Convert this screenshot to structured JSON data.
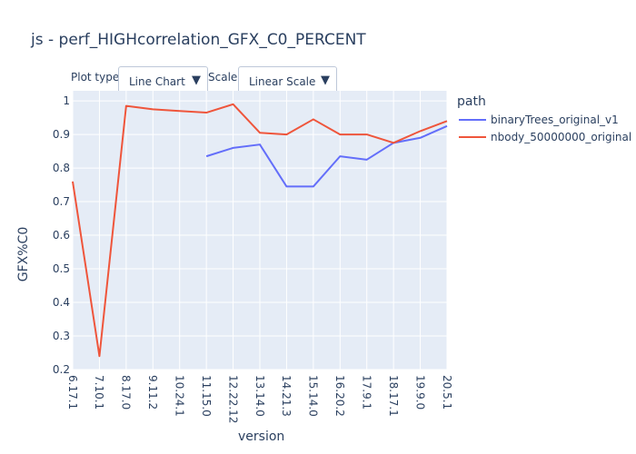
{
  "title": "js - perf_HIGHcorrelation_GFX_C0_PERCENT",
  "controls": {
    "plot_type_label": "Plot type:",
    "plot_type_value": "Line Chart",
    "scale_label": "Scale:",
    "scale_value": "Linear Scale",
    "dropdown_arrow": "▼"
  },
  "legend": {
    "title": "path"
  },
  "colors": {
    "background": "#ffffff",
    "plot_bg": "#e5ecf6",
    "grid": "#ffffff",
    "series_blue": "#636efa",
    "series_red": "#ef553b",
    "text": "#2a3f5f"
  },
  "chart_data": {
    "type": "line",
    "title": "js - perf_HIGHcorrelation_GFX_C0_PERCENT",
    "xlabel": "version",
    "ylabel": "GFX%C0",
    "x_categories": [
      "6.17.1",
      "7.10.1",
      "8.17.0",
      "9.11.2",
      "10.24.1",
      "11.15.0",
      "12.22.12",
      "13.14.0",
      "14.21.3",
      "15.14.0",
      "16.20.2",
      "17.9.1",
      "18.17.1",
      "19.9.0",
      "20.5.1"
    ],
    "ylim": [
      0.2,
      1.03
    ],
    "yticks": [
      0.2,
      0.3,
      0.4,
      0.5,
      0.6,
      0.7,
      0.8,
      0.9,
      1
    ],
    "ytick_labels": [
      "0.2",
      "0.3",
      "0.4",
      "0.5",
      "0.6",
      "0.7",
      "0.8",
      "0.9",
      "1"
    ],
    "grid": true,
    "legend_position": "right",
    "series": [
      {
        "name": "binaryTrees_original_v1",
        "color": "#636efa",
        "x": [
          "11.15.0",
          "12.22.12",
          "13.14.0",
          "14.21.3",
          "15.14.0",
          "16.20.2",
          "17.9.1",
          "18.17.1",
          "19.9.0",
          "20.5.1"
        ],
        "y": [
          0.835,
          0.86,
          0.87,
          0.745,
          0.745,
          0.835,
          0.825,
          0.875,
          0.89,
          0.925
        ]
      },
      {
        "name": "nbody_50000000_original",
        "color": "#ef553b",
        "x": [
          "6.17.1",
          "7.10.1",
          "8.17.0",
          "9.11.2",
          "10.24.1",
          "11.15.0",
          "12.22.12",
          "13.14.0",
          "14.21.3",
          "15.14.0",
          "16.20.2",
          "17.9.1",
          "18.17.1",
          "19.9.0",
          "20.5.1"
        ],
        "y": [
          0.76,
          0.24,
          0.985,
          0.975,
          0.97,
          0.965,
          0.99,
          0.905,
          0.9,
          0.945,
          0.9,
          0.9,
          0.875,
          0.91,
          0.94
        ]
      }
    ]
  }
}
